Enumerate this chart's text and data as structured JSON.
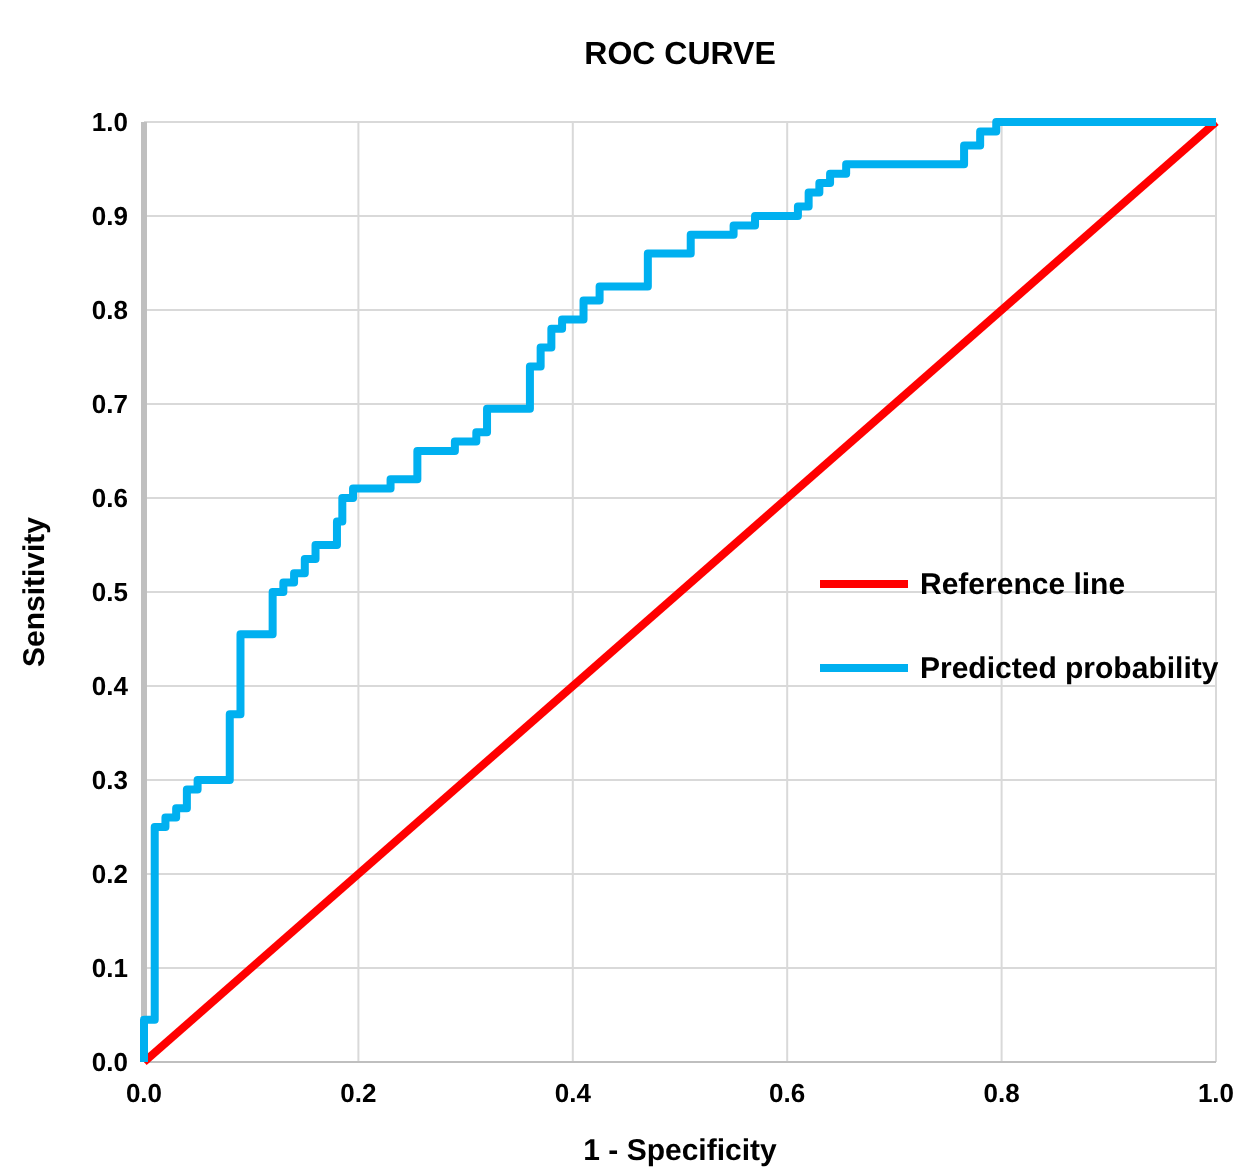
{
  "chart_data": {
    "type": "line",
    "title": "ROC CURVE",
    "xlabel": "1 - Specificity",
    "ylabel": "Sensitivity",
    "xlim": [
      0,
      1
    ],
    "ylim": [
      0,
      1
    ],
    "xticks": [
      {
        "value": 0,
        "label": "0.0"
      },
      0.2,
      0.4,
      0.6,
      0.8,
      {
        "value": 1,
        "label": "1.0"
      }
    ],
    "yticks": [
      {
        "value": 0,
        "label": "0.0"
      },
      0.1,
      0.2,
      0.3,
      0.4,
      0.5,
      0.6,
      0.7,
      0.8,
      0.9,
      {
        "value": 1,
        "label": "1.0"
      }
    ],
    "grid": true,
    "legend": "right",
    "line_style": "solid",
    "marker": "none",
    "series": [
      {
        "name": "Reference line",
        "type": "line",
        "color": "#ff0000",
        "x": [
          0,
          1
        ],
        "values": [
          0,
          1
        ]
      },
      {
        "name": "Predicted probability",
        "type": "step",
        "color": "#00b0f0",
        "x": [
          0,
          0,
          0.01,
          0.02,
          0.03,
          0.04,
          0.05,
          0.08,
          0.09,
          0.12,
          0.13,
          0.14,
          0.15,
          0.16,
          0.18,
          0.185,
          0.195,
          0.23,
          0.255,
          0.29,
          0.31,
          0.32,
          0.36,
          0.37,
          0.38,
          0.39,
          0.41,
          0.425,
          0.47,
          0.51,
          0.55,
          0.57,
          0.61,
          0.62,
          0.63,
          0.64,
          0.655,
          0.765,
          0.78,
          0.795,
          1
        ],
        "values": [
          0,
          0.045,
          0.25,
          0.26,
          0.27,
          0.29,
          0.3,
          0.37,
          0.455,
          0.5,
          0.51,
          0.52,
          0.535,
          0.55,
          0.575,
          0.6,
          0.61,
          0.62,
          0.65,
          0.66,
          0.67,
          0.695,
          0.74,
          0.76,
          0.78,
          0.79,
          0.81,
          0.825,
          0.86,
          0.88,
          0.89,
          0.9,
          0.91,
          0.925,
          0.935,
          0.945,
          0.955,
          0.975,
          0.99,
          1,
          1
        ]
      }
    ]
  }
}
